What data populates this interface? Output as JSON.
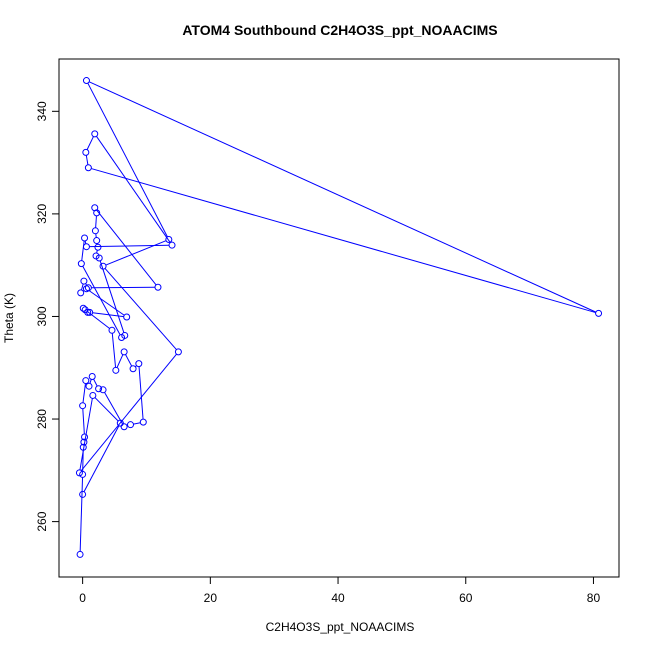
{
  "chart_data": {
    "type": "line",
    "title": "ATOM4 Southbound C2H4O3S_ppt_NOAACIMS",
    "xlabel": "C2H4O3S_ppt_NOAACIMS",
    "ylabel": "Theta (K)",
    "xlim": [
      -3.7,
      84.0
    ],
    "ylim": [
      249.2,
      350.2
    ],
    "x_ticks": [
      0,
      20,
      40,
      60,
      80
    ],
    "y_ticks": [
      260,
      280,
      300,
      320,
      340
    ],
    "grid": false,
    "legend": "none",
    "color": "#0000ff",
    "series": [
      {
        "points": [
          [
            -0.4,
            253.6
          ],
          [
            0.0,
            269.2
          ],
          [
            0.1,
            274.5
          ],
          [
            0.2,
            275.5
          ],
          [
            0.3,
            276.5
          ],
          [
            0.0,
            282.6
          ],
          [
            0.5,
            287.5
          ],
          [
            1.0,
            286.4
          ],
          [
            1.5,
            288.3
          ],
          [
            2.5,
            285.9
          ],
          [
            3.2,
            285.7
          ],
          [
            6.5,
            278.5
          ],
          [
            7.5,
            278.9
          ],
          [
            9.5,
            279.4
          ],
          [
            8.8,
            290.8
          ],
          [
            7.9,
            289.8
          ],
          [
            6.5,
            293.1
          ],
          [
            5.2,
            289.5
          ],
          [
            4.6,
            297.3
          ],
          [
            0.4,
            301.3
          ],
          [
            0.1,
            301.6
          ],
          [
            0.8,
            300.8
          ],
          [
            1.1,
            300.8
          ],
          [
            6.9,
            299.9
          ],
          [
            0.6,
            305.4
          ],
          [
            -0.3,
            304.6
          ],
          [
            0.2,
            306.9
          ],
          [
            0.9,
            305.6
          ],
          [
            11.8,
            305.7
          ],
          [
            1.9,
            321.2
          ],
          [
            2.2,
            320.2
          ],
          [
            2.0,
            316.7
          ],
          [
            2.2,
            314.8
          ],
          [
            2.4,
            313.5
          ],
          [
            2.1,
            311.8
          ],
          [
            2.6,
            311.4
          ],
          [
            6.6,
            296.3
          ],
          [
            6.1,
            295.9
          ],
          [
            -0.2,
            310.3
          ],
          [
            0.3,
            315.3
          ],
          [
            0.6,
            313.6
          ],
          [
            14.0,
            313.9
          ],
          [
            1.9,
            335.6
          ],
          [
            0.5,
            332.0
          ],
          [
            0.9,
            329.0
          ],
          [
            80.8,
            300.6
          ],
          [
            0.6,
            346.0
          ],
          [
            13.5,
            315.0
          ],
          [
            3.2,
            309.8
          ],
          [
            15.0,
            293.1
          ],
          [
            -0.5,
            269.5
          ],
          [
            1.6,
            284.6
          ],
          [
            5.9,
            279.2
          ],
          [
            0.0,
            265.3
          ]
        ]
      }
    ]
  }
}
